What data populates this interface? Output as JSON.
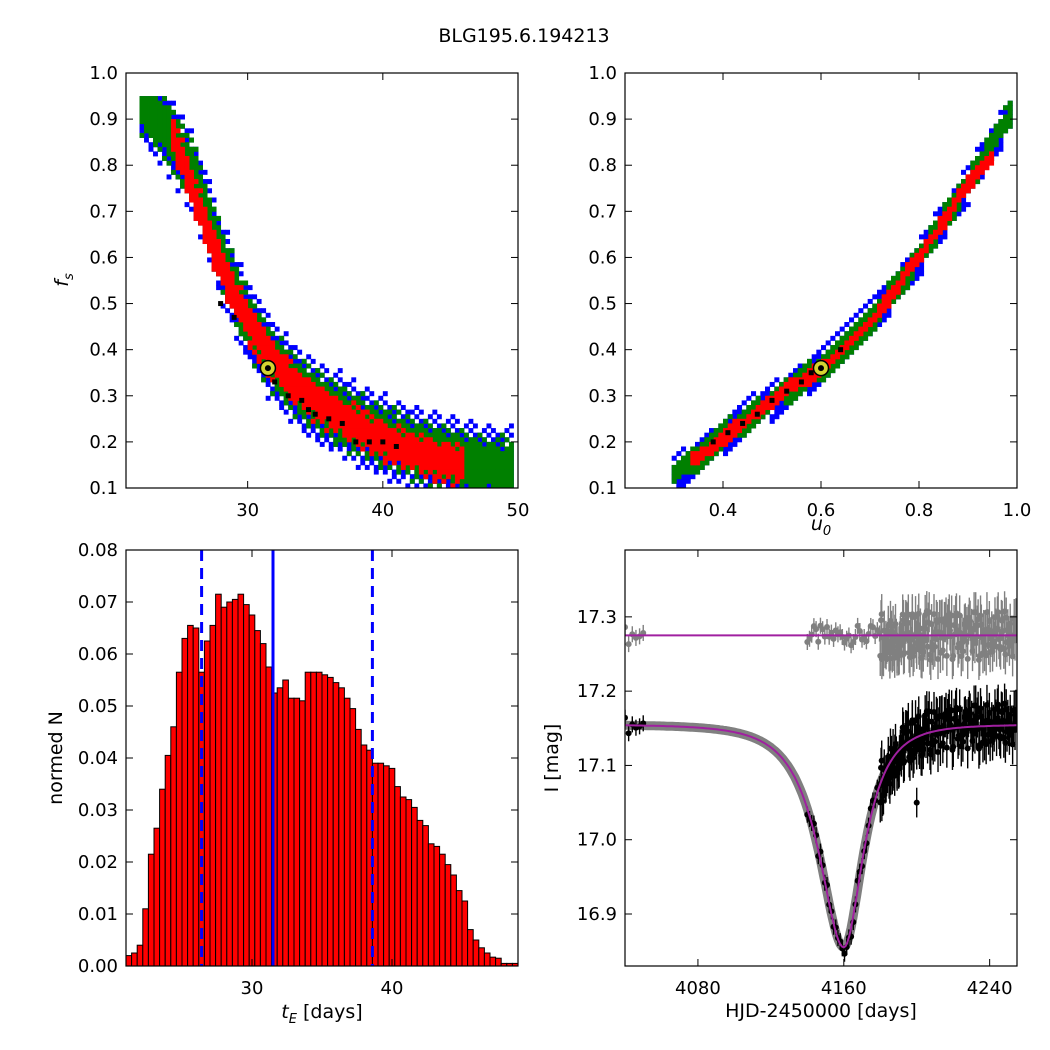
{
  "title": "BLG195.6.194213",
  "chart_data": [
    {
      "type": "heatmap",
      "panel": "top-left",
      "xlabel": "",
      "ylabel": "f_s",
      "xlim": [
        21,
        50
      ],
      "ylim": [
        0.1,
        1.0
      ],
      "xticks": [
        "30",
        "40",
        "50"
      ],
      "yticks": [
        "0.1",
        "0.2",
        "0.3",
        "0.4",
        "0.5",
        "0.6",
        "0.7",
        "0.8",
        "0.9",
        "1.0"
      ],
      "levels": [
        {
          "color": "#0000ff",
          "ridge": [
            [
              22,
              0.94
            ],
            [
              24,
              0.88
            ],
            [
              26,
              0.78
            ],
            [
              28,
              0.6
            ],
            [
              30,
              0.46
            ],
            [
              32,
              0.37
            ],
            [
              34,
              0.31
            ],
            [
              36,
              0.27
            ],
            [
              38,
              0.24
            ],
            [
              40,
              0.21
            ],
            [
              42,
              0.19
            ],
            [
              44,
              0.17
            ],
            [
              46,
              0.155
            ],
            [
              48,
              0.145
            ],
            [
              49.5,
              0.14
            ]
          ],
          "width": 0.075
        },
        {
          "color": "#008000",
          "ridge": [
            [
              22,
              0.94
            ],
            [
              24,
              0.88
            ],
            [
              26,
              0.78
            ],
            [
              28,
              0.6
            ],
            [
              30,
              0.46
            ],
            [
              32,
              0.37
            ],
            [
              34,
              0.31
            ],
            [
              36,
              0.27
            ],
            [
              38,
              0.24
            ],
            [
              40,
              0.21
            ],
            [
              42,
              0.19
            ],
            [
              44,
              0.17
            ],
            [
              46,
              0.155
            ],
            [
              48,
              0.145
            ],
            [
              49.5,
              0.14
            ]
          ],
          "width": 0.058
        },
        {
          "color": "#ff0000",
          "ridge": [
            [
              24.5,
              0.86
            ],
            [
              26,
              0.74
            ],
            [
              28,
              0.58
            ],
            [
              30,
              0.46
            ],
            [
              32,
              0.37
            ],
            [
              34,
              0.31
            ],
            [
              36,
              0.27
            ],
            [
              38,
              0.235
            ],
            [
              40,
              0.205
            ],
            [
              42,
              0.18
            ],
            [
              44,
              0.16
            ],
            [
              46,
              0.15
            ]
          ],
          "width": 0.038
        }
      ],
      "black_points": [
        [
          28,
          0.5
        ],
        [
          29,
          0.47
        ],
        [
          32,
          0.33
        ],
        [
          33,
          0.3
        ],
        [
          34,
          0.29
        ],
        [
          34.5,
          0.27
        ],
        [
          35,
          0.26
        ],
        [
          36,
          0.25
        ],
        [
          37,
          0.24
        ],
        [
          38,
          0.2
        ],
        [
          39,
          0.2
        ],
        [
          40,
          0.2
        ],
        [
          41,
          0.19
        ]
      ],
      "best_fit": {
        "x": 31.5,
        "y": 0.36
      }
    },
    {
      "type": "heatmap",
      "panel": "top-right",
      "xlabel": "u_0",
      "ylabel": "",
      "xlim": [
        0.2,
        1.0
      ],
      "ylim": [
        0.1,
        1.0
      ],
      "xticks": [
        "0.4",
        "0.6",
        "0.8",
        "1.0"
      ],
      "yticks": [
        "0.1",
        "0.2",
        "0.3",
        "0.4",
        "0.5",
        "0.6",
        "0.7",
        "0.8",
        "0.9",
        "1.0"
      ],
      "levels": [
        {
          "color": "#0000ff",
          "ridge": [
            [
              0.3,
              0.13
            ],
            [
              0.4,
              0.21
            ],
            [
              0.5,
              0.29
            ],
            [
              0.6,
              0.36
            ],
            [
              0.7,
              0.46
            ],
            [
              0.8,
              0.6
            ],
            [
              0.9,
              0.76
            ],
            [
              0.99,
              0.92
            ]
          ],
          "width": 0.035
        },
        {
          "color": "#008000",
          "ridge": [
            [
              0.3,
              0.13
            ],
            [
              0.4,
              0.21
            ],
            [
              0.5,
              0.29
            ],
            [
              0.6,
              0.36
            ],
            [
              0.7,
              0.46
            ],
            [
              0.8,
              0.6
            ],
            [
              0.9,
              0.76
            ],
            [
              0.99,
              0.92
            ]
          ],
          "width": 0.026
        },
        {
          "color": "#ff0000",
          "ridge": [
            [
              0.33,
              0.15
            ],
            [
              0.4,
              0.21
            ],
            [
              0.5,
              0.29
            ],
            [
              0.6,
              0.36
            ],
            [
              0.7,
              0.46
            ],
            [
              0.8,
              0.6
            ],
            [
              0.9,
              0.76
            ],
            [
              0.95,
              0.82
            ]
          ],
          "width": 0.015
        }
      ],
      "black_points": [
        [
          0.38,
          0.2
        ],
        [
          0.41,
          0.22
        ],
        [
          0.44,
          0.24
        ],
        [
          0.47,
          0.26
        ],
        [
          0.5,
          0.29
        ],
        [
          0.53,
          0.31
        ],
        [
          0.56,
          0.33
        ],
        [
          0.58,
          0.35
        ],
        [
          0.64,
          0.4
        ]
      ],
      "best_fit": {
        "x": 0.6,
        "y": 0.36
      }
    },
    {
      "type": "bar",
      "panel": "bottom-left",
      "xlabel": "t_E [days]",
      "ylabel": "normed N",
      "xlim": [
        21,
        49
      ],
      "ylim": [
        0.0,
        0.08
      ],
      "xticks": [
        "30",
        "40"
      ],
      "yticks": [
        "0.00",
        "0.01",
        "0.02",
        "0.03",
        "0.04",
        "0.05",
        "0.06",
        "0.07",
        "0.08"
      ],
      "bin_start": 21.0,
      "bin_width": 0.4,
      "values": [
        0.002,
        0.0025,
        0.004,
        0.011,
        0.0215,
        0.0265,
        0.034,
        0.0405,
        0.046,
        0.0565,
        0.063,
        0.0655,
        0.065,
        0.0565,
        0.0625,
        0.0655,
        0.0715,
        0.069,
        0.07,
        0.0705,
        0.0715,
        0.0695,
        0.0675,
        0.0645,
        0.062,
        0.0575,
        0.0525,
        0.0535,
        0.055,
        0.0515,
        0.0515,
        0.051,
        0.0565,
        0.0565,
        0.0565,
        0.056,
        0.0555,
        0.0545,
        0.0535,
        0.0515,
        0.0495,
        0.0455,
        0.0425,
        0.0415,
        0.039,
        0.039,
        0.0385,
        0.038,
        0.0345,
        0.0325,
        0.032,
        0.0305,
        0.028,
        0.027,
        0.0235,
        0.023,
        0.0215,
        0.0195,
        0.0175,
        0.0145,
        0.0125,
        0.007,
        0.005,
        0.0035,
        0.0025,
        0.0017,
        0.0015,
        0.0005,
        0.0005,
        0.0005
      ],
      "vlines": [
        {
          "x": 31.5,
          "style": "solid"
        },
        {
          "x": 26.4,
          "style": "dashed"
        },
        {
          "x": 38.6,
          "style": "dashed"
        }
      ],
      "bar_color": "#ff0000",
      "line_color": "#0000ff"
    },
    {
      "type": "scatter",
      "panel": "bottom-right",
      "xlabel": "HJD-2450000 [days]",
      "ylabel": "I [mag]",
      "xlim": [
        4040,
        4255
      ],
      "ylim": [
        17.39,
        16.83
      ],
      "y_inverted": true,
      "xticks": [
        "4080",
        "4160",
        "4240"
      ],
      "yticks": [
        "16.9",
        "17.0",
        "17.1",
        "17.2",
        "17.3"
      ],
      "model": {
        "t0": 4160,
        "tE": 31.5,
        "u0": 0.6,
        "baseline": 17.155,
        "peak_mag": 16.855
      },
      "residual_offset": 17.275,
      "series": [
        {
          "color": "#000000"
        },
        {
          "color": "#808080"
        }
      ],
      "model_color": "#a020a0"
    }
  ]
}
